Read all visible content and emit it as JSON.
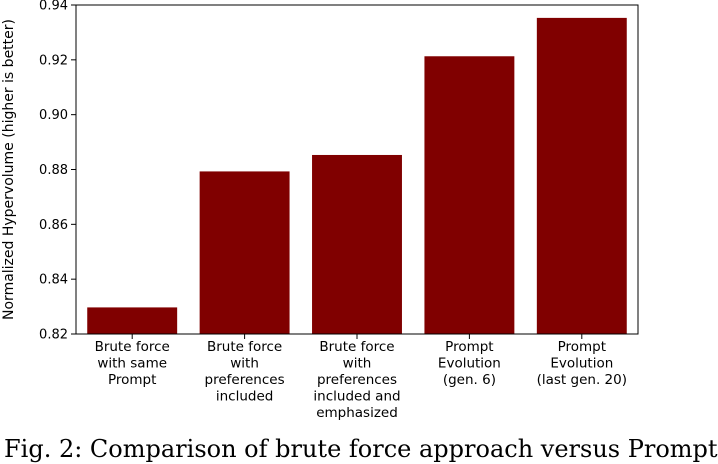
{
  "chart_data": {
    "type": "bar",
    "categories": [
      "Brute force\nwith same\nPrompt",
      "Brute force\nwith\npreferences\nincluded",
      "Brute force\nwith\npreferences\nincluded and\nemphasized",
      "Prompt\nEvolution\n(gen. 6)",
      "Prompt\nEvolution\n(last gen. 20)"
    ],
    "values": [
      0.8297,
      0.8793,
      0.8853,
      0.9213,
      0.9353
    ],
    "title": "",
    "xlabel": "",
    "ylabel": "Normalized Hypervolume (higher is better)",
    "ylim": [
      0.82,
      0.94
    ],
    "yticks": [
      "0.82",
      "0.84",
      "0.86",
      "0.88",
      "0.90",
      "0.92",
      "0.94"
    ],
    "grid": false,
    "bar_color": "#800000"
  },
  "caption": "Fig. 2: Comparison of brute force approach versus Prompt"
}
